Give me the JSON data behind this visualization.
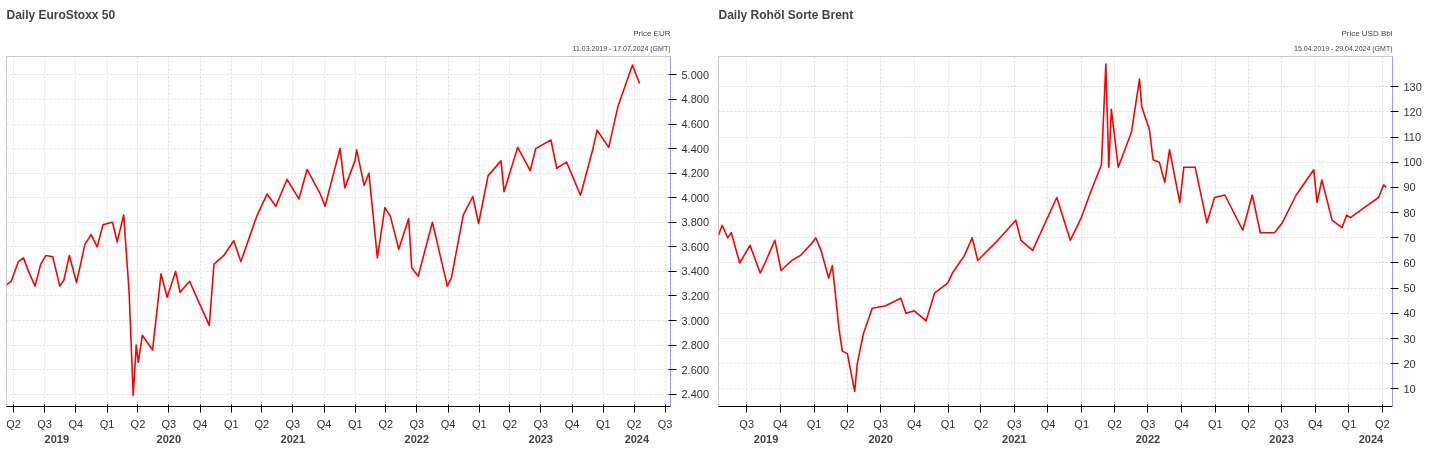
{
  "chart_data": [
    {
      "type": "line",
      "title": "Daily EuroStoxx 50",
      "subtitle": "11.03.2019 - 17.07.2024 (GMT)",
      "ylabel": "Price EUR",
      "x": [
        "2019-03-11",
        "2019-03-25",
        "2019-04-15",
        "2019-04-30",
        "2019-05-15",
        "2019-06-03",
        "2019-06-20",
        "2019-07-05",
        "2019-07-25",
        "2019-08-15",
        "2019-08-27",
        "2019-09-12",
        "2019-10-03",
        "2019-10-28",
        "2019-11-15",
        "2019-12-03",
        "2019-12-20",
        "2020-01-17",
        "2020-01-31",
        "2020-02-19",
        "2020-03-06",
        "2020-03-18",
        "2020-03-27",
        "2020-04-02",
        "2020-04-14",
        "2020-05-14",
        "2020-06-08",
        "2020-06-26",
        "2020-07-21",
        "2020-08-03",
        "2020-08-31",
        "2020-09-24",
        "2020-10-28",
        "2020-11-11",
        "2020-12-10",
        "2021-01-08",
        "2021-01-29",
        "2021-03-17",
        "2021-04-16",
        "2021-05-12",
        "2021-06-14",
        "2021-07-19",
        "2021-08-12",
        "2021-09-20",
        "2021-10-04",
        "2021-11-17",
        "2021-12-01",
        "2021-12-31",
        "2022-01-05",
        "2022-01-27",
        "2022-02-10",
        "2022-03-07",
        "2022-03-29",
        "2022-04-14",
        "2022-05-09",
        "2022-06-07",
        "2022-06-16",
        "2022-07-05",
        "2022-08-16",
        "2022-09-29",
        "2022-10-11",
        "2022-11-15",
        "2022-12-13",
        "2022-12-30",
        "2023-01-27",
        "2023-03-06",
        "2023-03-15",
        "2023-04-24",
        "2023-05-31",
        "2023-06-16",
        "2023-07-31",
        "2023-08-17",
        "2023-09-15",
        "2023-10-26",
        "2023-11-30",
        "2023-12-14",
        "2024-01-17",
        "2024-02-13",
        "2024-03-27",
        "2024-04-17"
      ],
      "series": [
        {
          "color": "#ff0000",
          "values": [
            3290,
            3320,
            3480,
            3510,
            3400,
            3280,
            3460,
            3530,
            3520,
            3280,
            3330,
            3530,
            3310,
            3620,
            3700,
            3600,
            3780,
            3800,
            3640,
            3860,
            3230,
            2390,
            2800,
            2660,
            2880,
            2760,
            3380,
            3190,
            3400,
            3230,
            3320,
            3170,
            2960,
            3460,
            3530,
            3650,
            3480,
            3850,
            4030,
            3930,
            4150,
            3990,
            4230,
            4030,
            3930,
            4400,
            4080,
            4300,
            4390,
            4100,
            4200,
            3510,
            3920,
            3850,
            3580,
            3830,
            3430,
            3360,
            3800,
            3280,
            3350,
            3860,
            4010,
            3790,
            4180,
            4300,
            4050,
            4410,
            4220,
            4400,
            4470,
            4240,
            4290,
            4020,
            4380,
            4550,
            4410,
            4740,
            5080,
            4930
          ]
        }
      ],
      "xlim": [
        "2019-03-11",
        "2024-07-17"
      ],
      "xticks": [
        {
          "value": "2019-04-01",
          "label": "Q2"
        },
        {
          "value": "2019-07-01",
          "label": "Q3"
        },
        {
          "value": "2019-10-01",
          "label": "Q4"
        },
        {
          "value": "2020-01-01",
          "label": "Q1"
        },
        {
          "value": "2020-04-01",
          "label": "Q2"
        },
        {
          "value": "2020-07-01",
          "label": "Q3"
        },
        {
          "value": "2020-10-01",
          "label": "Q4"
        },
        {
          "value": "2021-01-01",
          "label": "Q1"
        },
        {
          "value": "2021-04-01",
          "label": "Q2"
        },
        {
          "value": "2021-07-01",
          "label": "Q3"
        },
        {
          "value": "2021-10-01",
          "label": "Q4"
        },
        {
          "value": "2022-01-01",
          "label": "Q1"
        },
        {
          "value": "2022-04-01",
          "label": "Q2"
        },
        {
          "value": "2022-07-01",
          "label": "Q3"
        },
        {
          "value": "2022-10-01",
          "label": "Q4"
        },
        {
          "value": "2023-01-01",
          "label": "Q1"
        },
        {
          "value": "2023-04-01",
          "label": "Q2"
        },
        {
          "value": "2023-07-01",
          "label": "Q3"
        },
        {
          "value": "2023-10-01",
          "label": "Q4"
        },
        {
          "value": "2024-01-01",
          "label": "Q1"
        },
        {
          "value": "2024-04-01",
          "label": "Q2"
        },
        {
          "value": "2024-07-01",
          "label": "Q3"
        }
      ],
      "x2lim": [
        "2019-03-11",
        "2024-07-17"
      ],
      "x2ticks": [
        {
          "value": "2019-08-06",
          "label": "2019"
        },
        {
          "value": "2020-01-01",
          "label": null
        },
        {
          "value": "2020-07-01",
          "label": "2020"
        },
        {
          "value": "2021-01-01",
          "label": null
        },
        {
          "value": "2021-07-01",
          "label": "2021"
        },
        {
          "value": "2022-01-01",
          "label": null
        },
        {
          "value": "2022-07-01",
          "label": "2022"
        },
        {
          "value": "2023-01-01",
          "label": null
        },
        {
          "value": "2023-07-01",
          "label": "2023"
        },
        {
          "value": "2024-01-01",
          "label": null
        },
        {
          "value": "2024-04-09",
          "label": "2024"
        }
      ],
      "ylim": [
        2300,
        5150
      ],
      "yticks": [
        {
          "value": 2400,
          "label": "2.400"
        },
        {
          "value": 2600,
          "label": "2.600"
        },
        {
          "value": 2800,
          "label": "2.800"
        },
        {
          "value": 3000,
          "label": "3.000"
        },
        {
          "value": 3200,
          "label": "3.200"
        },
        {
          "value": 3400,
          "label": "3.400"
        },
        {
          "value": 3600,
          "label": "3.600"
        },
        {
          "value": 3800,
          "label": "3.800"
        },
        {
          "value": 4000,
          "label": "4.000"
        },
        {
          "value": 4200,
          "label": "4.200"
        },
        {
          "value": 4400,
          "label": "4.400"
        },
        {
          "value": 4600,
          "label": "4.600"
        },
        {
          "value": 4800,
          "label": "4.800"
        },
        {
          "value": 5000,
          "label": "5.000"
        }
      ],
      "grid": true
    },
    {
      "type": "line",
      "title": "Daily Rohöl Sorte Brent",
      "subtitle": "15.04.2019 - 29.04.2024 (GMT)",
      "ylabel": "Price USD Bbl",
      "x": [
        "2019-04-15",
        "2019-04-25",
        "2019-05-10",
        "2019-05-20",
        "2019-06-12",
        "2019-07-10",
        "2019-08-07",
        "2019-08-20",
        "2019-09-16",
        "2019-10-03",
        "2019-11-01",
        "2019-11-25",
        "2019-12-27",
        "2020-01-06",
        "2020-01-20",
        "2020-02-10",
        "2020-02-20",
        "2020-03-09",
        "2020-03-18",
        "2020-04-01",
        "2020-04-21",
        "2020-04-28",
        "2020-05-15",
        "2020-06-08",
        "2020-07-15",
        "2020-08-25",
        "2020-09-08",
        "2020-10-01",
        "2020-11-02",
        "2020-11-25",
        "2020-12-31",
        "2021-01-13",
        "2021-02-15",
        "2021-03-08",
        "2021-03-23",
        "2021-05-17",
        "2021-07-05",
        "2021-07-19",
        "2021-08-20",
        "2021-10-25",
        "2021-12-01",
        "2021-12-31",
        "2022-01-25",
        "2022-02-24",
        "2022-03-08",
        "2022-03-16",
        "2022-03-23",
        "2022-04-11",
        "2022-05-17",
        "2022-06-08",
        "2022-06-14",
        "2022-07-05",
        "2022-07-15",
        "2022-08-01",
        "2022-08-16",
        "2022-08-29",
        "2022-09-26",
        "2022-10-07",
        "2022-11-07",
        "2022-12-09",
        "2022-12-30",
        "2023-01-27",
        "2023-03-17",
        "2023-04-12",
        "2023-05-04",
        "2023-06-12",
        "2023-07-03",
        "2023-08-10",
        "2023-09-27",
        "2023-10-06",
        "2023-10-19",
        "2023-11-16",
        "2023-12-13",
        "2023-12-26",
        "2024-01-05",
        "2024-02-12",
        "2024-03-22",
        "2024-04-05",
        "2024-04-12"
      ],
      "series": [
        {
          "color": "#ff0000",
          "values": [
            71,
            75,
            70,
            72,
            60,
            67,
            56,
            60,
            69,
            57,
            61,
            63,
            68,
            70,
            65,
            54,
            59,
            34,
            25,
            24,
            9,
            20,
            32,
            42,
            43,
            46,
            40,
            41,
            37,
            48,
            52,
            56,
            63,
            70,
            61,
            69,
            77,
            69,
            65,
            86,
            69,
            78,
            88,
            99,
            139,
            98,
            121,
            98,
            112,
            133,
            122,
            113,
            101,
            100,
            92,
            105,
            84,
            98,
            98,
            76,
            86,
            87,
            73,
            87,
            72,
            72,
            76,
            87,
            97,
            84,
            93,
            77,
            74,
            79,
            78,
            82,
            86,
            91,
            90
          ]
        }
      ],
      "xlim": [
        "2019-04-15",
        "2024-04-29"
      ],
      "xticks": [
        {
          "value": "2019-07-01",
          "label": "Q3"
        },
        {
          "value": "2019-10-01",
          "label": "Q4"
        },
        {
          "value": "2020-01-01",
          "label": "Q1"
        },
        {
          "value": "2020-04-01",
          "label": "Q2"
        },
        {
          "value": "2020-07-01",
          "label": "Q3"
        },
        {
          "value": "2020-10-01",
          "label": "Q4"
        },
        {
          "value": "2021-01-01",
          "label": "Q1"
        },
        {
          "value": "2021-04-01",
          "label": "Q2"
        },
        {
          "value": "2021-07-01",
          "label": "Q3"
        },
        {
          "value": "2021-10-01",
          "label": "Q4"
        },
        {
          "value": "2022-01-01",
          "label": "Q1"
        },
        {
          "value": "2022-04-01",
          "label": "Q2"
        },
        {
          "value": "2022-07-01",
          "label": "Q3"
        },
        {
          "value": "2022-10-01",
          "label": "Q4"
        },
        {
          "value": "2023-01-01",
          "label": "Q1"
        },
        {
          "value": "2023-04-01",
          "label": "Q2"
        },
        {
          "value": "2023-07-01",
          "label": "Q3"
        },
        {
          "value": "2023-10-01",
          "label": "Q4"
        },
        {
          "value": "2024-01-01",
          "label": "Q1"
        },
        {
          "value": "2024-04-01",
          "label": "Q2"
        }
      ],
      "x2lim": [
        "2019-04-15",
        "2024-04-29"
      ],
      "x2ticks": [
        {
          "value": "2019-08-23",
          "label": "2019"
        },
        {
          "value": "2020-01-01",
          "label": null
        },
        {
          "value": "2020-07-01",
          "label": "2020"
        },
        {
          "value": "2021-01-01",
          "label": null
        },
        {
          "value": "2021-07-01",
          "label": "2021"
        },
        {
          "value": "2022-01-01",
          "label": null
        },
        {
          "value": "2022-07-01",
          "label": "2022"
        },
        {
          "value": "2023-01-01",
          "label": null
        },
        {
          "value": "2023-07-01",
          "label": "2023"
        },
        {
          "value": "2024-01-01",
          "label": null
        },
        {
          "value": "2024-03-01",
          "label": "2024"
        }
      ],
      "ylim": [
        3,
        142
      ],
      "yticks": [
        10,
        20,
        30,
        40,
        50,
        60,
        70,
        80,
        90,
        100,
        110,
        120,
        130
      ],
      "grid": true
    }
  ]
}
